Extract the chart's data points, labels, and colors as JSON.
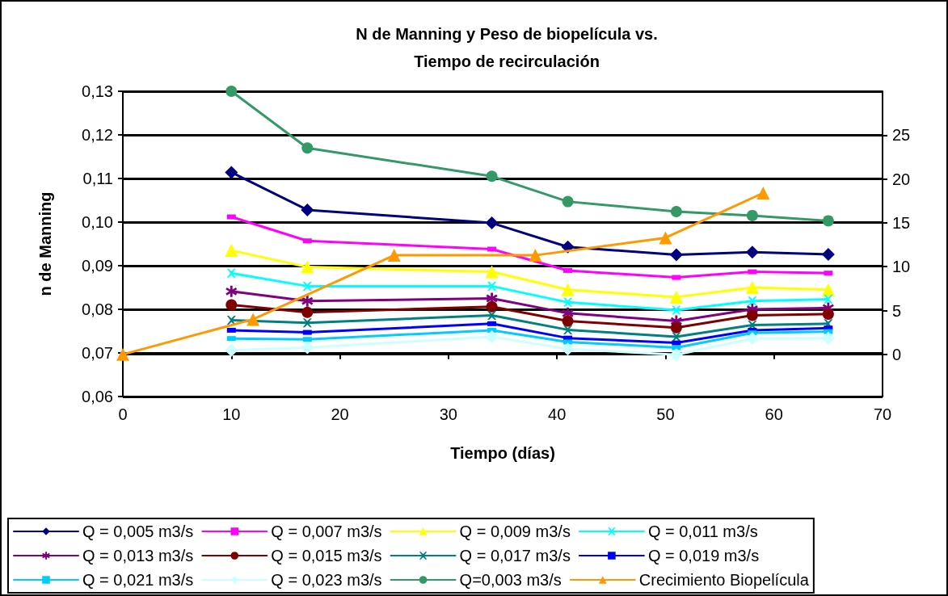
{
  "chart_data": {
    "type": "line",
    "title": "N de Manning y Peso de biopelícula vs.\nTiempo de recirculación",
    "xlabel": "Tiempo (días)",
    "ylabel": "n de Manning",
    "x": [
      10,
      17,
      34,
      41,
      51,
      58,
      65
    ],
    "xlim": [
      0,
      70
    ],
    "xticks": [
      0,
      10,
      20,
      30,
      40,
      50,
      60,
      70
    ],
    "ylim": [
      0.06,
      0.13
    ],
    "yticks": [
      {
        "value": 0.06,
        "label": "0,06"
      },
      {
        "value": 0.07,
        "label": "0,07"
      },
      {
        "value": 0.08,
        "label": "0,08"
      },
      {
        "value": 0.09,
        "label": "0,09"
      },
      {
        "value": 0.1,
        "label": "0,10"
      },
      {
        "value": 0.11,
        "label": "0,11"
      },
      {
        "value": 0.12,
        "label": "0,12"
      },
      {
        "value": 0.13,
        "label": "0,13"
      }
    ],
    "y2lim": [
      -4.8,
      30
    ],
    "y2ticks": [
      0,
      5,
      10,
      15,
      20,
      25
    ],
    "grid": "y",
    "legend": "bottom",
    "line_style": "solid",
    "series": [
      {
        "name": "Q = 0,005 m3/s",
        "color": "#000080",
        "marker": "diamond",
        "values": [
          0.1114,
          0.1028,
          0.0998,
          0.0943,
          0.0925,
          0.0931,
          0.0926
        ]
      },
      {
        "name": "Q = 0,007 m3/s",
        "color": "#ff00ff",
        "marker": "square",
        "values": [
          0.1012,
          0.0957,
          0.0938,
          0.0889,
          0.0873,
          0.0886,
          0.0883
        ]
      },
      {
        "name": "Q = 0,009 m3/s",
        "color": "#ffff00",
        "marker": "triangle",
        "values": [
          0.0935,
          0.0897,
          0.0886,
          0.0845,
          0.0828,
          0.085,
          0.0845
        ]
      },
      {
        "name": "Q = 0,011 m3/s",
        "color": "#00ffff",
        "marker": "cross",
        "values": [
          0.0883,
          0.0853,
          0.0853,
          0.0816,
          0.0798,
          0.0819,
          0.0823
        ]
      },
      {
        "name": "Q = 0,013 m3/s",
        "color": "#800080",
        "marker": "star",
        "values": [
          0.0841,
          0.0819,
          0.0825,
          0.0791,
          0.0773,
          0.08,
          0.0803
        ]
      },
      {
        "name": "Q = 0,015 m3/s",
        "color": "#800000",
        "marker": "circle",
        "values": [
          0.081,
          0.0793,
          0.0806,
          0.0773,
          0.0758,
          0.0786,
          0.0789
        ]
      },
      {
        "name": "Q = 0,017 m3/s",
        "color": "#008080",
        "marker": "cross",
        "values": [
          0.0775,
          0.0769,
          0.0786,
          0.0753,
          0.0737,
          0.0764,
          0.0767
        ]
      },
      {
        "name": "Q = 0,019 m3/s",
        "color": "#0000ff",
        "marker": "square",
        "values": [
          0.0752,
          0.0747,
          0.0767,
          0.0734,
          0.0723,
          0.0752,
          0.0757
        ]
      },
      {
        "name": "Q = 0,021 m3/s",
        "color": "#00ccff",
        "marker": "square",
        "values": [
          0.0733,
          0.0731,
          0.0752,
          0.0725,
          0.0712,
          0.0746,
          0.0749
        ]
      },
      {
        "name": "Q = 0,023 m3/s",
        "color": "#ccffff",
        "marker": "diamond",
        "values": [
          0.0706,
          0.0712,
          0.0737,
          0.0709,
          0.0696,
          0.0733,
          0.0734
        ]
      },
      {
        "name": "Q=0,003 m3/s",
        "color": "#339966",
        "marker": "circle",
        "values": [
          0.13,
          0.117,
          0.1105,
          0.1047,
          0.1024,
          0.1015,
          0.1003
        ]
      },
      {
        "name": "Crecimiento Biopelícula",
        "color": "#ff9900",
        "marker": "triangle",
        "axis": "y2",
        "x": [
          0,
          12,
          25,
          38,
          50,
          59
        ],
        "values": [
          0,
          4,
          11.3,
          11.3,
          13.3,
          18.4
        ]
      }
    ]
  }
}
